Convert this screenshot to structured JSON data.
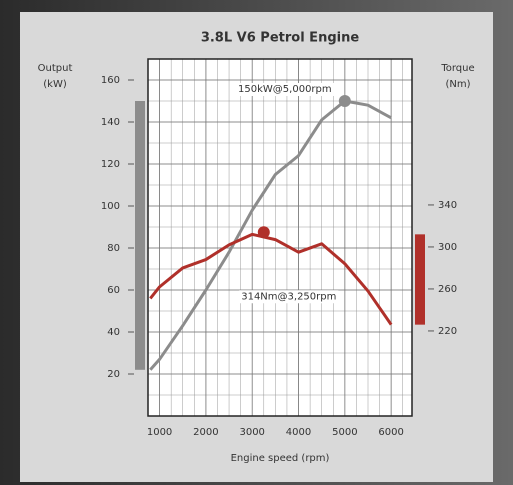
{
  "chart_data": {
    "type": "line",
    "title": "3.8L V6 Petrol Engine",
    "xlabel": "Engine speed (rpm)",
    "ylabel": [
      "Output",
      "(kW)"
    ],
    "y2label": [
      "Torque",
      "(Nm)"
    ],
    "x": [
      800,
      1000,
      1500,
      2000,
      2500,
      3000,
      3500,
      4000,
      4500,
      5000,
      5500,
      6000
    ],
    "series": [
      {
        "name": "Output",
        "color": "#8c8c8c",
        "axis": "y",
        "values": [
          22,
          27,
          43,
          60,
          78,
          98,
          115,
          124,
          141,
          150,
          148,
          142
        ]
      },
      {
        "name": "Torque",
        "color": "#b0302a",
        "axis": "y2",
        "values": [
          251,
          262,
          280,
          288,
          302,
          312,
          307,
          295,
          303,
          284,
          258,
          226
        ]
      }
    ],
    "peaks": [
      {
        "x": 5000,
        "value": 150,
        "axis": "y",
        "label": "150kW@5,000rpm"
      },
      {
        "x": 3250,
        "value": 314,
        "axis": "y2",
        "label": "314Nm@3,250rpm"
      }
    ],
    "xlim": [
      750,
      6450
    ],
    "xticks": [
      1000,
      2000,
      3000,
      4000,
      5000,
      6000
    ],
    "ylim": [
      0,
      170
    ],
    "yticks": [
      20,
      40,
      60,
      80,
      100,
      120,
      140,
      160
    ],
    "y2lim": [
      139,
      479
    ],
    "y2ticks": [
      220,
      260,
      300,
      340
    ],
    "grid": true
  }
}
